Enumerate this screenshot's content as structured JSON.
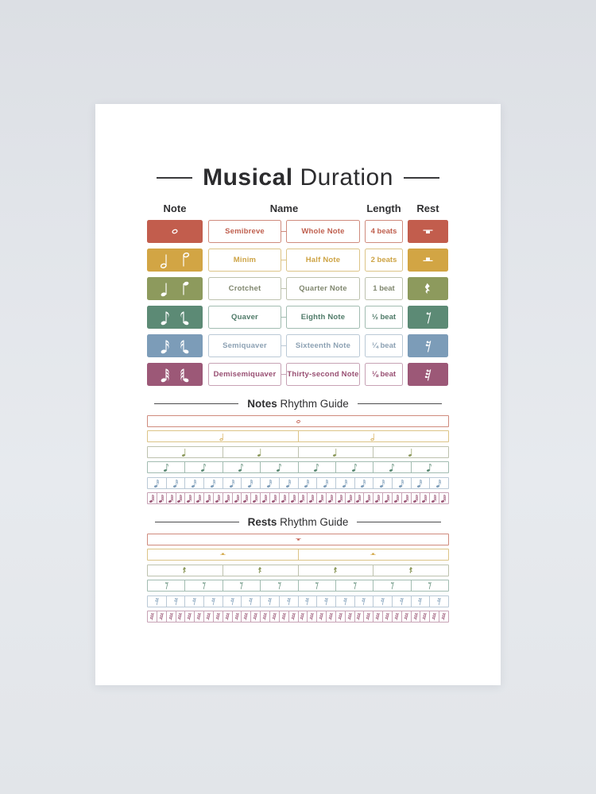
{
  "poster": {
    "title": {
      "bold": "Musical",
      "light": "Duration"
    },
    "columns": {
      "note": "Note",
      "name": "Name",
      "length": "Length",
      "rest": "Rest"
    },
    "rows": [
      {
        "note_icon": "whole-note",
        "rest_icon": "whole-rest",
        "name_uk": "Semibreve",
        "name_us": "Whole Note",
        "length": "4 beats",
        "block_color": "#c25d4d",
        "border_color": "#cf8b7d",
        "text_color": "#bf5f4e"
      },
      {
        "note_icon": "half-note",
        "rest_icon": "half-rest",
        "name_uk": "Minim",
        "name_us": "Half Note",
        "length": "2 beats",
        "block_color": "#d2a544",
        "border_color": "#dcc487",
        "text_color": "#cda344"
      },
      {
        "note_icon": "quarter-note",
        "rest_icon": "quarter-rest",
        "name_uk": "Crotchet",
        "name_us": "Quarter Note",
        "length": "1 beat",
        "block_color": "#8d9a5d",
        "border_color": "#bdc2ae",
        "text_color": "#80876f"
      },
      {
        "note_icon": "eighth-note",
        "rest_icon": "eighth-rest",
        "name_uk": "Quaver",
        "name_us": "Eighth Note",
        "length": "½ beat",
        "block_color": "#5c8a75",
        "border_color": "#a2bcb1",
        "text_color": "#4f7a68"
      },
      {
        "note_icon": "sixteenth-note",
        "rest_icon": "sixteenth-rest",
        "name_uk": "Semiquaver",
        "name_us": "Sixteenth Note",
        "length": "¼ beat",
        "block_color": "#7c9cb8",
        "border_color": "#bac9d6",
        "text_color": "#8ca1b3"
      },
      {
        "note_icon": "thirty-second-note",
        "rest_icon": "thirty-second-rest",
        "name_uk": "Demisemiquaver",
        "name_us": "Thirty-second Note",
        "length": "⅛ beat",
        "block_color": "#9c5877",
        "border_color": "#c7a2b5",
        "text_color": "#984f72"
      }
    ],
    "notes_guide": {
      "title_bold": "Notes",
      "title_light": "Rhythm Guide",
      "rows": [
        {
          "glyph": "whole-note",
          "count": 1,
          "row": 0
        },
        {
          "glyph": "half-note",
          "count": 2,
          "row": 1
        },
        {
          "glyph": "quarter-note",
          "count": 4,
          "row": 2
        },
        {
          "glyph": "eighth-note",
          "count": 8,
          "row": 3
        },
        {
          "glyph": "sixteenth-note",
          "count": 16,
          "row": 4
        },
        {
          "glyph": "thirty-second-note",
          "count": 32,
          "row": 5
        }
      ]
    },
    "rests_guide": {
      "title_bold": "Rests",
      "title_light": "Rhythm Guide",
      "rows": [
        {
          "glyph": "whole-rest",
          "count": 1,
          "row": 0
        },
        {
          "glyph": "half-rest",
          "count": 2,
          "row": 1
        },
        {
          "glyph": "quarter-rest",
          "count": 4,
          "row": 2
        },
        {
          "glyph": "eighth-rest",
          "count": 8,
          "row": 3
        },
        {
          "glyph": "sixteenth-rest",
          "count": 16,
          "row": 4
        },
        {
          "glyph": "thirty-second-rest",
          "count": 32,
          "row": 5
        }
      ]
    }
  }
}
